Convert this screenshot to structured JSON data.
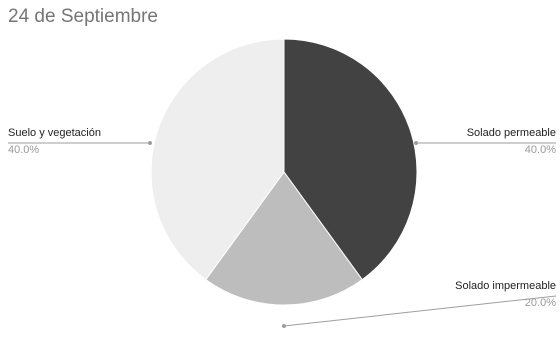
{
  "chart_data": {
    "type": "pie",
    "title": "24 de Septiembre",
    "slices": [
      {
        "label": "Solado permeable",
        "value": 40.0,
        "display": "40.0%",
        "color": "#424242"
      },
      {
        "label": "Solado impermeable",
        "value": 20.0,
        "display": "20.0%",
        "color": "#bdbdbd"
      },
      {
        "label": "Suelo y vegetación",
        "value": 40.0,
        "display": "40.0%",
        "color": "#eeeeee"
      }
    ],
    "legend": "callout labels beside slices"
  }
}
